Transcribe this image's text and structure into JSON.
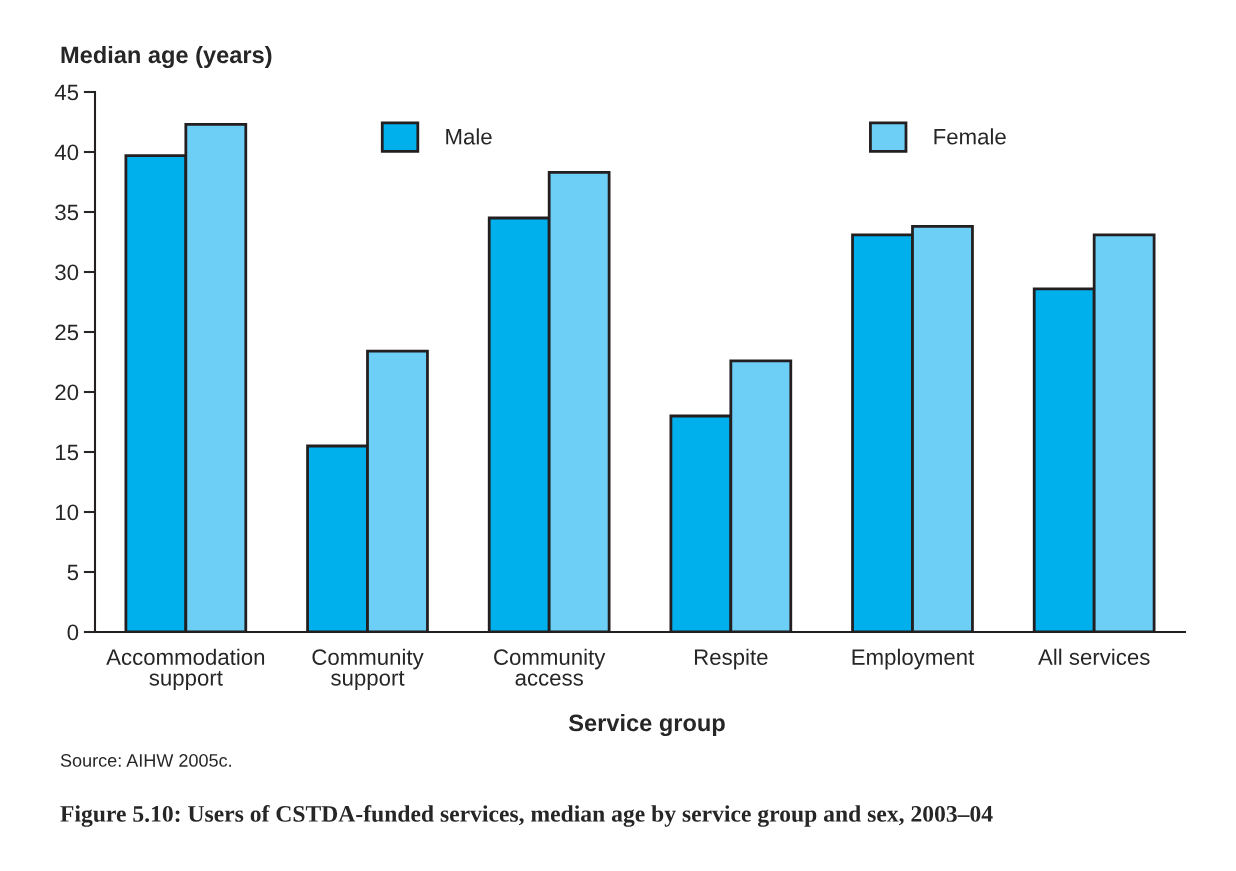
{
  "chart_data": {
    "type": "bar",
    "title": "Figure 5.10: Users of CSTDA-funded services, median age by service group and sex, 2003–04",
    "xlabel": "Service group",
    "ylabel": "Median age (years)",
    "categories": [
      "Accommodation\nsupport",
      "Community\nsupport",
      "Community\naccess",
      "Respite",
      "Employment",
      "All services"
    ],
    "series": [
      {
        "name": "Male",
        "color": "#00b0ed",
        "values": [
          39.7,
          15.5,
          34.5,
          18.0,
          33.1,
          28.6
        ]
      },
      {
        "name": "Female",
        "color": "#6dcff6",
        "values": [
          42.3,
          23.4,
          38.3,
          22.6,
          33.8,
          33.1
        ]
      }
    ],
    "ylim": [
      0,
      45
    ],
    "yticks": [
      0,
      5,
      10,
      15,
      20,
      25,
      30,
      35,
      40,
      45
    ],
    "legend": "top",
    "grid": false,
    "annotations": [
      "Source: AIHW 2005c."
    ]
  }
}
